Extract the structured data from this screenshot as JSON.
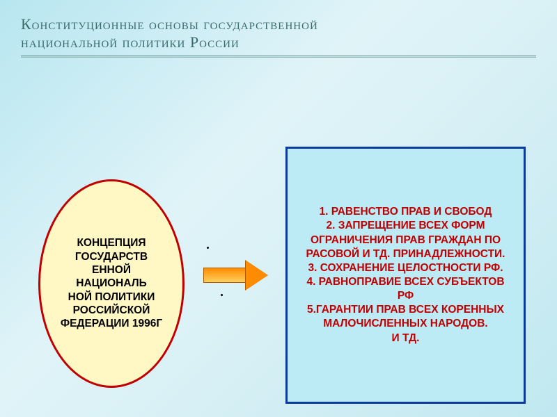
{
  "title": {
    "line1": "Конституционные  основы государственной",
    "line2": "национальной политики   России",
    "fontsize": 22,
    "color": "#3a6a6a"
  },
  "diagram": {
    "ellipse": {
      "text": "КОНЦЕПЦИЯ ГОСУДАРСТВ\nЕННОЙ НАЦИОНАЛЬ\nНОЙ ПОЛИТИКИ РОССИЙСКОЙ ФЕДЕРАЦИИ 1996Г",
      "fill": "#fff8c4",
      "border": "#c00000",
      "text_color": "#000000",
      "fontsize": 15.5
    },
    "arrow": {
      "fill_start": "#ff8c00",
      "fill_end": "#ffd060",
      "border": "#b05a00",
      "head_width": 32
    },
    "principles": {
      "fill": "#bceaf5",
      "border": "#0a3aa0",
      "text_color": "#c00000",
      "fontsize": 15.5,
      "items": [
        "1.  РАВЕНСТВО ПРАВ И СВОБОД",
        "2.  ЗАПРЕЩЕНИЕ ВСЕХ ФОРМ ОГРАНИЧЕНИЯ ПРАВ ГРАЖДАН ПО РАСОВОЙ И ТД. ПРИНАДЛЕЖНОСТИ.",
        "3.  СОХРАНЕНИЕ ЦЕЛОСТНОСТИ РФ.",
        "4.  РАВНОПРАВИЕ ВСЕХ СУБЪЕКТОВ",
        "РФ",
        "5.ГАРАНТИИ ПРАВ  ВСЕХ КОРЕННЫХ МАЛОЧИСЛЕННЫХ НАРОДОВ.",
        "И ТД."
      ]
    }
  },
  "background": {
    "gradient_from": "#b8e6f0",
    "gradient_to": "#c0e8f0"
  }
}
